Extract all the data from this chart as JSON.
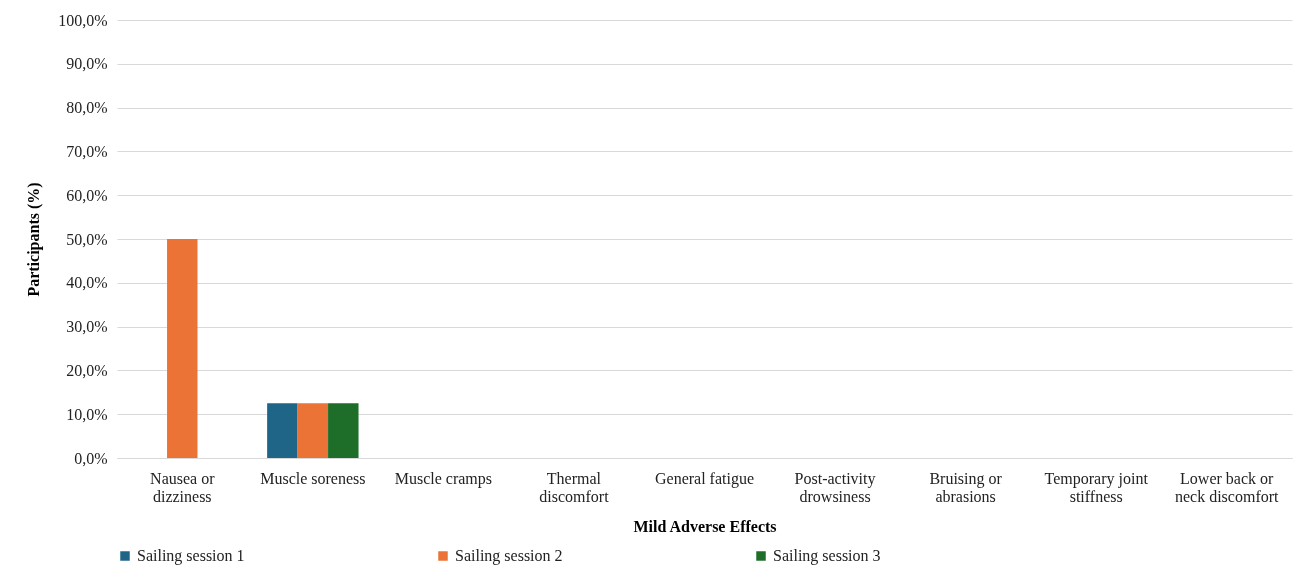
{
  "chart_data": {
    "type": "bar",
    "xlabel": "Mild Adverse Effects",
    "ylabel": "Participants (%)",
    "categories": [
      "Nausea or dizziness",
      "Muscle soreness",
      "Muscle cramps",
      "Thermal discomfort",
      "General fatigue",
      "Post-activity drowsiness",
      "Bruising or abrasions",
      "Temporary joint stiffness",
      "Lower back or neck discomfort"
    ],
    "series": [
      {
        "name": "Sailing session 1",
        "color": "#1f6587",
        "values": [
          0,
          12.5,
          0,
          0,
          0,
          0,
          0,
          0,
          0
        ]
      },
      {
        "name": "Sailing session 2",
        "color": "#eb7335",
        "values": [
          50,
          12.5,
          0,
          0,
          0,
          0,
          0,
          0,
          0
        ]
      },
      {
        "name": "Sailing session 3",
        "color": "#1e6e2a",
        "values": [
          0,
          12.5,
          0,
          0,
          0,
          0,
          0,
          0,
          0
        ]
      }
    ],
    "ylim": [
      0,
      100
    ],
    "yticks": [
      {
        "value": 0,
        "label": "0,0%"
      },
      {
        "value": 10,
        "label": "10,0%"
      },
      {
        "value": 20,
        "label": "20,0%"
      },
      {
        "value": 30,
        "label": "30,0%"
      },
      {
        "value": 40,
        "label": "40,0%"
      },
      {
        "value": 50,
        "label": "50,0%"
      },
      {
        "value": 60,
        "label": "60,0%"
      },
      {
        "value": 70,
        "label": "70,0%"
      },
      {
        "value": 80,
        "label": "80,0%"
      },
      {
        "value": 90,
        "label": "90,0%"
      },
      {
        "value": 100,
        "label": "100,0%"
      }
    ],
    "grid": "y",
    "legend": "bottom"
  }
}
